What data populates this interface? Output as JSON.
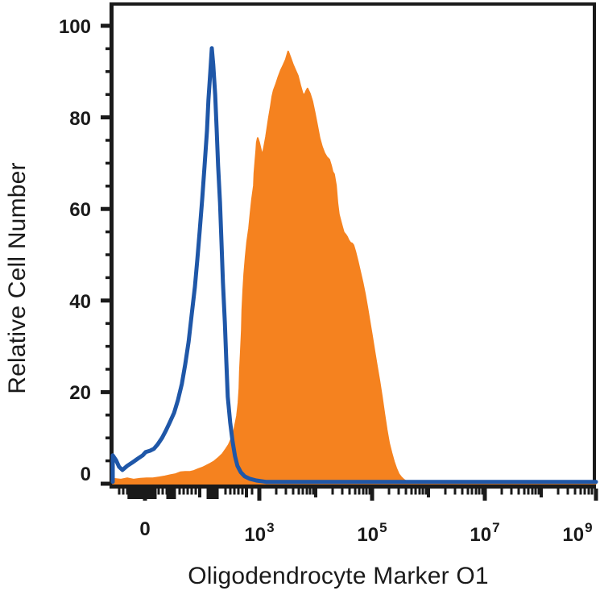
{
  "figure": {
    "background": "#ffffff",
    "axis_color": "#1a1a1a",
    "x_axis_title": "Oligodendrocyte Marker O1",
    "y_axis_title": "Relative Cell Number"
  },
  "chart_data": {
    "type": "area",
    "description": "Flow cytometry overlay histogram: open blue control trace and orange filled stained trace",
    "legend_position": "none",
    "grid": false,
    "x_axis": {
      "scale": "biexponential-log",
      "labeled_ticks": [
        {
          "text": "0",
          "f": 0.0667
        },
        {
          "base": "10",
          "exp": "3",
          "f": 0.3033
        },
        {
          "base": "10",
          "exp": "5",
          "f": 0.5367
        },
        {
          "base": "10",
          "exp": "7",
          "f": 0.77
        },
        {
          "base": "10",
          "exp": "9",
          "f": 1.0
        }
      ],
      "tick_blocks": [
        {
          "f0": 0.033,
          "f1": 0.0883
        },
        {
          "f0": 0.1133,
          "f1": 0.1283
        },
        {
          "f0": 0.1967,
          "f1": 0.2167
        }
      ],
      "minor_ticks": [
        {
          "f": 0.0133,
          "s": "s"
        },
        {
          "f": 0.0217,
          "s": "s"
        },
        {
          "f": 0.03,
          "s": "s"
        },
        {
          "f": 0.095,
          "s": "s"
        },
        {
          "f": 0.1033,
          "s": "s"
        },
        {
          "f": 0.1117,
          "s": "s"
        },
        {
          "f": 0.1383,
          "s": "s"
        },
        {
          "f": 0.1467,
          "s": "s"
        },
        {
          "f": 0.155,
          "s": "s"
        },
        {
          "f": 0.1633,
          "s": "s"
        },
        {
          "f": 0.1717,
          "s": "s"
        },
        {
          "f": 0.18,
          "s": "m"
        },
        {
          "f": 0.2333,
          "s": "s"
        },
        {
          "f": 0.2433,
          "s": "s"
        },
        {
          "f": 0.2517,
          "s": "s"
        },
        {
          "f": 0.26,
          "s": "s"
        },
        {
          "f": 0.2683,
          "s": "s"
        },
        {
          "f": 0.2767,
          "s": "m"
        },
        {
          "f": 0.2883,
          "s": "s"
        },
        {
          "f": 0.3383,
          "s": "s"
        },
        {
          "f": 0.3583,
          "s": "s"
        },
        {
          "f": 0.3733,
          "s": "s"
        },
        {
          "f": 0.385,
          "s": "s"
        },
        {
          "f": 0.3933,
          "s": "s"
        },
        {
          "f": 0.4017,
          "s": "s"
        },
        {
          "f": 0.4083,
          "s": "s"
        },
        {
          "f": 0.415,
          "s": "s"
        },
        {
          "f": 0.42,
          "s": "m"
        },
        {
          "f": 0.455,
          "s": "s"
        },
        {
          "f": 0.475,
          "s": "s"
        },
        {
          "f": 0.49,
          "s": "s"
        },
        {
          "f": 0.5017,
          "s": "s"
        },
        {
          "f": 0.51,
          "s": "s"
        },
        {
          "f": 0.5183,
          "s": "s"
        },
        {
          "f": 0.525,
          "s": "s"
        },
        {
          "f": 0.5317,
          "s": "s"
        },
        {
          "f": 0.5717,
          "s": "s"
        },
        {
          "f": 0.5917,
          "s": "s"
        },
        {
          "f": 0.6067,
          "s": "s"
        },
        {
          "f": 0.6183,
          "s": "s"
        },
        {
          "f": 0.6267,
          "s": "s"
        },
        {
          "f": 0.635,
          "s": "s"
        },
        {
          "f": 0.6417,
          "s": "s"
        },
        {
          "f": 0.6483,
          "s": "s"
        },
        {
          "f": 0.6533,
          "s": "m"
        },
        {
          "f": 0.6883,
          "s": "s"
        },
        {
          "f": 0.7083,
          "s": "s"
        },
        {
          "f": 0.7233,
          "s": "s"
        },
        {
          "f": 0.735,
          "s": "s"
        },
        {
          "f": 0.7433,
          "s": "s"
        },
        {
          "f": 0.7517,
          "s": "s"
        },
        {
          "f": 0.7583,
          "s": "s"
        },
        {
          "f": 0.765,
          "s": "s"
        },
        {
          "f": 0.805,
          "s": "s"
        },
        {
          "f": 0.825,
          "s": "s"
        },
        {
          "f": 0.84,
          "s": "s"
        },
        {
          "f": 0.8517,
          "s": "s"
        },
        {
          "f": 0.86,
          "s": "s"
        },
        {
          "f": 0.8683,
          "s": "s"
        },
        {
          "f": 0.875,
          "s": "s"
        },
        {
          "f": 0.8817,
          "s": "s"
        },
        {
          "f": 0.8867,
          "s": "m"
        },
        {
          "f": 0.9217,
          "s": "s"
        },
        {
          "f": 0.9417,
          "s": "s"
        },
        {
          "f": 0.9567,
          "s": "s"
        },
        {
          "f": 0.9683,
          "s": "s"
        },
        {
          "f": 0.9767,
          "s": "s"
        },
        {
          "f": 0.985,
          "s": "s"
        },
        {
          "f": 0.9917,
          "s": "s"
        },
        {
          "f": 0.9983,
          "s": "s"
        }
      ]
    },
    "y_axis": {
      "min": 0,
      "max": 100,
      "minor_step": 5,
      "major_ticks": [
        {
          "v": 0,
          "label": "0"
        },
        {
          "v": 20,
          "label": "20"
        },
        {
          "v": 40,
          "label": "40"
        },
        {
          "v": 60,
          "label": "60"
        },
        {
          "v": 80,
          "label": "80"
        },
        {
          "v": 100,
          "label": "100"
        }
      ]
    },
    "series": [
      {
        "id": "stained-orange-filled",
        "style": "filled-area",
        "color": "#F5821F",
        "peak_value": 94.4,
        "points": [
          [
            0,
            1.1
          ],
          [
            0.017,
            0.9
          ],
          [
            0.03,
            1.2
          ],
          [
            0.043,
            0.9
          ],
          [
            0.057,
            1.1
          ],
          [
            0.07,
            1.2
          ],
          [
            0.083,
            1.2
          ],
          [
            0.097,
            1.4
          ],
          [
            0.108,
            1.6
          ],
          [
            0.12,
            1.9
          ],
          [
            0.13,
            2.1
          ],
          [
            0.14,
            2.5
          ],
          [
            0.15,
            2.6
          ],
          [
            0.16,
            2.6
          ],
          [
            0.168,
            2.8
          ],
          [
            0.177,
            3.2
          ],
          [
            0.185,
            3.5
          ],
          [
            0.193,
            3.9
          ],
          [
            0.202,
            4.4
          ],
          [
            0.21,
            4.9
          ],
          [
            0.218,
            5.6
          ],
          [
            0.227,
            6.5
          ],
          [
            0.233,
            7.4
          ],
          [
            0.24,
            8.5
          ],
          [
            0.245,
            9.7
          ],
          [
            0.25,
            11.1
          ],
          [
            0.253,
            12.7
          ],
          [
            0.257,
            14.8
          ],
          [
            0.26,
            17.6
          ],
          [
            0.262,
            20.8
          ],
          [
            0.263,
            24.6
          ],
          [
            0.265,
            28.9
          ],
          [
            0.267,
            33.5
          ],
          [
            0.268,
            37.9
          ],
          [
            0.27,
            42.3
          ],
          [
            0.272,
            45.8
          ],
          [
            0.275,
            49.6
          ],
          [
            0.278,
            52.8
          ],
          [
            0.282,
            55.8
          ],
          [
            0.285,
            59
          ],
          [
            0.288,
            62
          ],
          [
            0.292,
            65.1
          ],
          [
            0.293,
            67.8
          ],
          [
            0.295,
            70.4
          ],
          [
            0.297,
            72.9
          ],
          [
            0.298,
            74.5
          ],
          [
            0.3,
            75.5
          ],
          [
            0.303,
            74.5
          ],
          [
            0.307,
            72.7
          ],
          [
            0.31,
            71.8
          ],
          [
            0.313,
            73.4
          ],
          [
            0.317,
            75.7
          ],
          [
            0.32,
            77.8
          ],
          [
            0.323,
            79.9
          ],
          [
            0.327,
            82.4
          ],
          [
            0.33,
            84.5
          ],
          [
            0.333,
            85.9
          ],
          [
            0.338,
            87.3
          ],
          [
            0.343,
            88.9
          ],
          [
            0.348,
            90.3
          ],
          [
            0.353,
            91.4
          ],
          [
            0.358,
            92.6
          ],
          [
            0.363,
            94.4
          ],
          [
            0.368,
            93
          ],
          [
            0.373,
            91.5
          ],
          [
            0.378,
            90.3
          ],
          [
            0.383,
            89.1
          ],
          [
            0.388,
            87
          ],
          [
            0.393,
            85.2
          ],
          [
            0.397,
            84.9
          ],
          [
            0.4,
            85.7
          ],
          [
            0.403,
            86.3
          ],
          [
            0.408,
            85.2
          ],
          [
            0.413,
            83.5
          ],
          [
            0.418,
            81
          ],
          [
            0.423,
            78.3
          ],
          [
            0.428,
            75.5
          ],
          [
            0.433,
            73.6
          ],
          [
            0.438,
            72.2
          ],
          [
            0.443,
            71.3
          ],
          [
            0.448,
            70.8
          ],
          [
            0.452,
            69.4
          ],
          [
            0.455,
            68.1
          ],
          [
            0.458,
            67.6
          ],
          [
            0.462,
            65.1
          ],
          [
            0.465,
            61.3
          ],
          [
            0.468,
            58.8
          ],
          [
            0.472,
            57.2
          ],
          [
            0.475,
            56
          ],
          [
            0.478,
            54.9
          ],
          [
            0.482,
            54.4
          ],
          [
            0.485,
            53.9
          ],
          [
            0.488,
            53.2
          ],
          [
            0.492,
            52.6
          ],
          [
            0.495,
            52.5
          ],
          [
            0.498,
            52.1
          ],
          [
            0.502,
            50.7
          ],
          [
            0.507,
            48.6
          ],
          [
            0.512,
            46.3
          ],
          [
            0.517,
            44
          ],
          [
            0.522,
            41.4
          ],
          [
            0.527,
            38.4
          ],
          [
            0.532,
            35.2
          ],
          [
            0.537,
            32
          ],
          [
            0.542,
            28.7
          ],
          [
            0.547,
            25.5
          ],
          [
            0.552,
            22.4
          ],
          [
            0.557,
            19
          ],
          [
            0.562,
            15.3
          ],
          [
            0.567,
            11.8
          ],
          [
            0.572,
            8.8
          ],
          [
            0.577,
            6.7
          ],
          [
            0.582,
            4.8
          ],
          [
            0.587,
            3.3
          ],
          [
            0.592,
            2.1
          ],
          [
            0.597,
            1.4
          ],
          [
            0.602,
            0.9
          ],
          [
            0.608,
            0.5
          ],
          [
            0.617,
            0.4
          ],
          [
            0.633,
            0.2
          ],
          [
            0.667,
            0.1
          ],
          [
            0.767,
            0.1
          ],
          [
            1,
            0.1
          ]
        ]
      },
      {
        "id": "control-blue-outline",
        "style": "line",
        "color": "#1F57A8",
        "peak_value": 95.1,
        "points": [
          [
            0,
            0.4
          ],
          [
            0,
            6.2
          ],
          [
            0.007,
            5.1
          ],
          [
            0.013,
            3.7
          ],
          [
            0.02,
            3
          ],
          [
            0.03,
            3.9
          ],
          [
            0.04,
            4.6
          ],
          [
            0.052,
            5.5
          ],
          [
            0.062,
            6.2
          ],
          [
            0.068,
            6.9
          ],
          [
            0.077,
            7.2
          ],
          [
            0.085,
            7.6
          ],
          [
            0.093,
            8.6
          ],
          [
            0.102,
            10
          ],
          [
            0.11,
            11.6
          ],
          [
            0.118,
            13.4
          ],
          [
            0.127,
            15.5
          ],
          [
            0.135,
            18.3
          ],
          [
            0.143,
            21.8
          ],
          [
            0.15,
            26.1
          ],
          [
            0.157,
            31
          ],
          [
            0.163,
            36.6
          ],
          [
            0.17,
            43
          ],
          [
            0.175,
            48.9
          ],
          [
            0.18,
            55.3
          ],
          [
            0.185,
            62
          ],
          [
            0.19,
            69.4
          ],
          [
            0.195,
            77.1
          ],
          [
            0.198,
            83.8
          ],
          [
            0.202,
            90.1
          ],
          [
            0.205,
            95.1
          ],
          [
            0.208,
            91.5
          ],
          [
            0.212,
            84.9
          ],
          [
            0.215,
            77.5
          ],
          [
            0.218,
            69.5
          ],
          [
            0.222,
            61.3
          ],
          [
            0.225,
            52.8
          ],
          [
            0.228,
            44
          ],
          [
            0.232,
            35.2
          ],
          [
            0.235,
            26.8
          ],
          [
            0.238,
            19
          ],
          [
            0.243,
            13.4
          ],
          [
            0.248,
            9.2
          ],
          [
            0.253,
            6
          ],
          [
            0.258,
            3.9
          ],
          [
            0.265,
            2.5
          ],
          [
            0.273,
            1.6
          ],
          [
            0.283,
            1.1
          ],
          [
            0.297,
            0.7
          ],
          [
            0.317,
            0.4
          ],
          [
            0.5,
            0.4
          ],
          [
            0.7,
            0.4
          ],
          [
            1,
            0.4
          ]
        ]
      }
    ]
  }
}
